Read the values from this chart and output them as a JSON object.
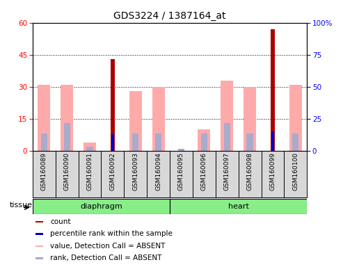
{
  "title": "GDS3224 / 1387164_at",
  "samples": [
    "GSM160089",
    "GSM160090",
    "GSM160091",
    "GSM160092",
    "GSM160093",
    "GSM160094",
    "GSM160095",
    "GSM160096",
    "GSM160097",
    "GSM160098",
    "GSM160099",
    "GSM160100"
  ],
  "tissue_groups": [
    {
      "label": "diaphragm",
      "start": 0,
      "end": 5
    },
    {
      "label": "heart",
      "start": 6,
      "end": 11
    }
  ],
  "value_absent": [
    31,
    31,
    4,
    0,
    28,
    30,
    0,
    10,
    33,
    30,
    0,
    31
  ],
  "rank_absent": [
    8,
    13,
    2,
    0,
    8,
    8,
    1,
    8,
    13,
    8,
    0,
    8
  ],
  "count_red": [
    0,
    0,
    0,
    43,
    0,
    0,
    0,
    0,
    0,
    0,
    57,
    0
  ],
  "percentile_rank": [
    0,
    0,
    0,
    13,
    0,
    0,
    0,
    0,
    0,
    0,
    15,
    0
  ],
  "ylim_left": [
    0,
    60
  ],
  "ylim_right": [
    0,
    100
  ],
  "yticks_left": [
    0,
    15,
    30,
    45,
    60
  ],
  "yticks_right": [
    0,
    25,
    50,
    75,
    100
  ],
  "color_count": "#aa0000",
  "color_percentile": "#0000cc",
  "color_value_absent": "#ffaaaa",
  "color_rank_absent": "#aaaacc",
  "bg_color": "#d8d8d8",
  "legend_items": [
    {
      "color": "#aa0000",
      "label": "count"
    },
    {
      "color": "#0000cc",
      "label": "percentile rank within the sample"
    },
    {
      "color": "#ffaaaa",
      "label": "value, Detection Call = ABSENT"
    },
    {
      "color": "#aaaacc",
      "label": "rank, Detection Call = ABSENT"
    }
  ]
}
